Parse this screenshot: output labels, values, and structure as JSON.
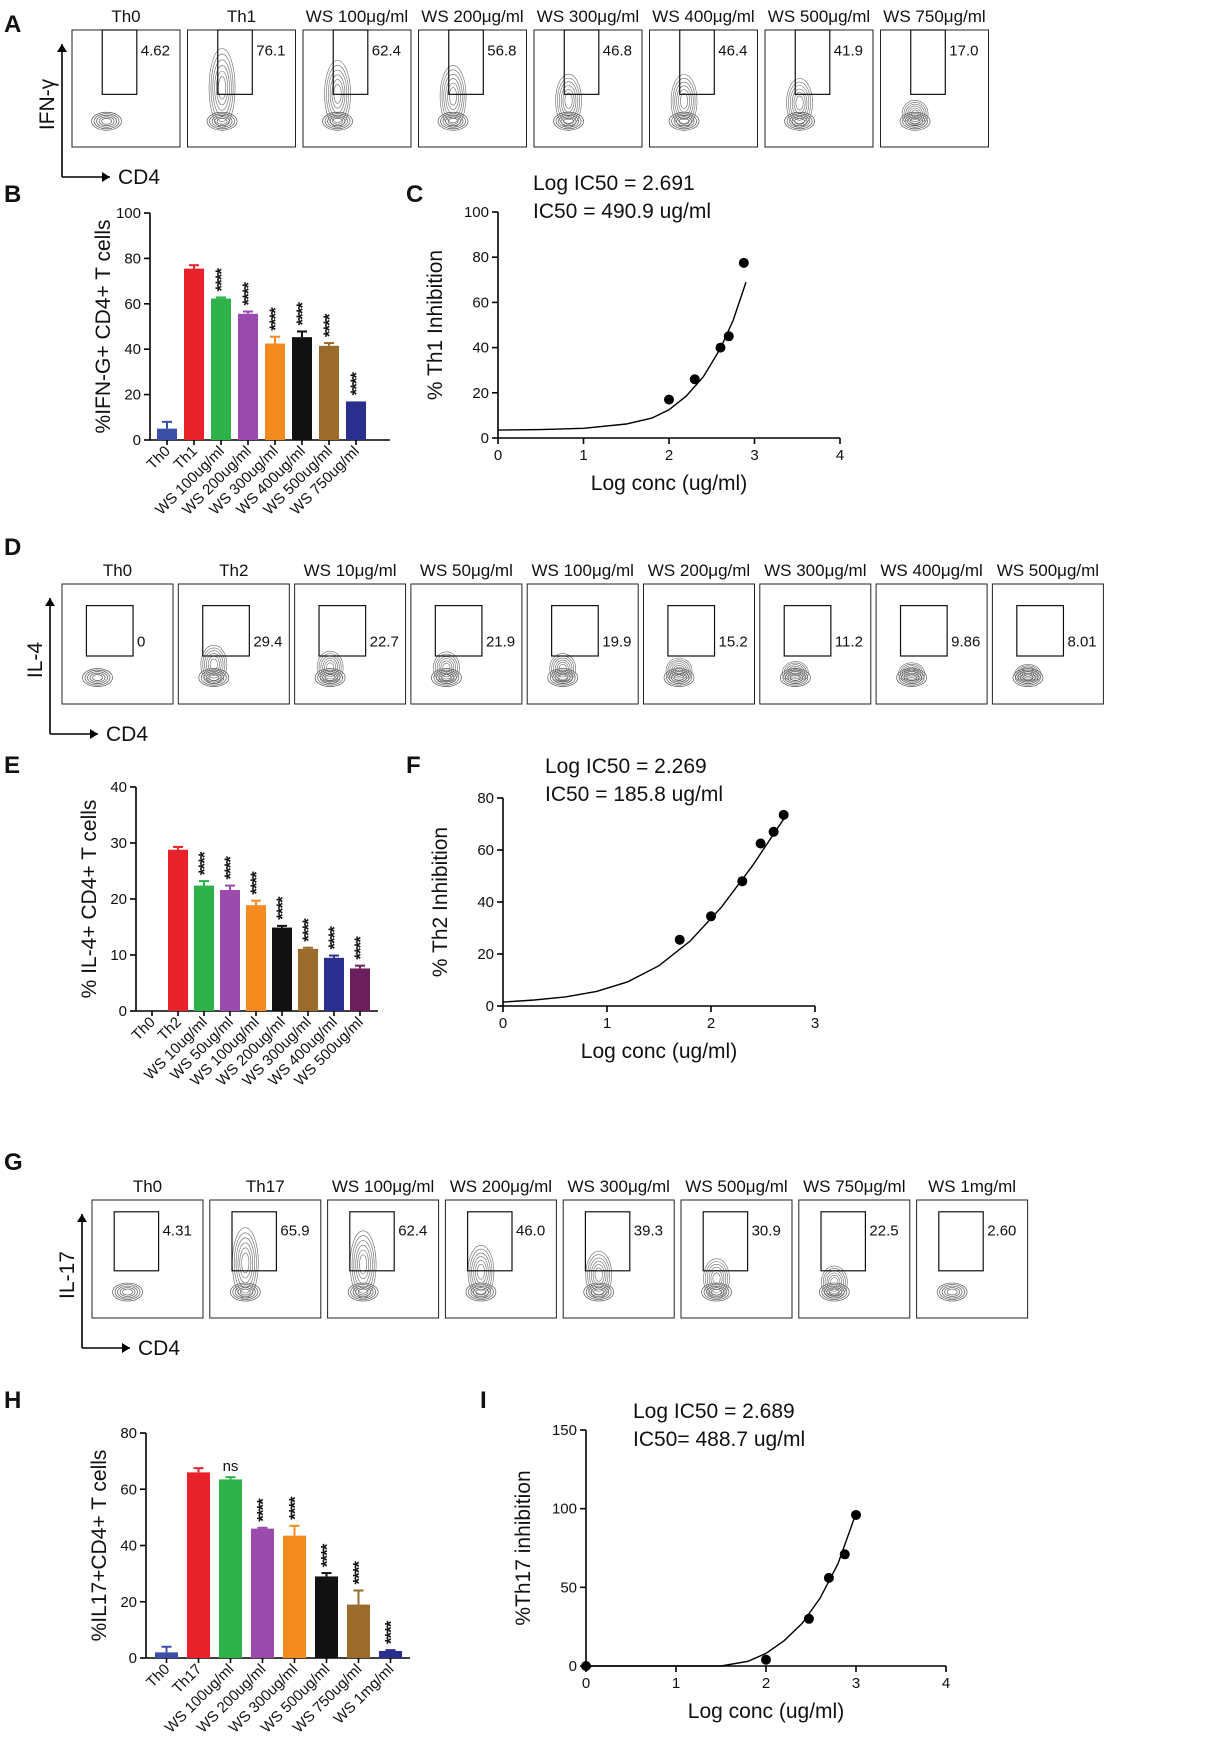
{
  "figure": {
    "panels": {
      "A": "A",
      "B": "B",
      "C": "C",
      "D": "D",
      "E": "E",
      "F": "F",
      "G": "G",
      "H": "H",
      "I": "I"
    }
  },
  "colors": {
    "th0": "#3b4fa8",
    "th": "#e8222b",
    "c1": "#2db24a",
    "c2": "#9b4aad",
    "c3": "#f58a1f",
    "c4": "#111111",
    "c5": "#9a6b2a",
    "c6": "#2a2f8f",
    "c7": "#6b1e5c"
  },
  "chart_data": [
    {
      "id": "A",
      "type": "flow-cytometry",
      "ylabel": "IFN-γ",
      "xlabel": "CD4",
      "titles": [
        "Th0",
        "Th1",
        "WS 100μg/ml",
        "WS 200μg/ml",
        "WS 300μg/ml",
        "WS 400μg/ml",
        "WS 500μg/ml",
        "WS 750μg/ml"
      ],
      "values": [
        "4.62",
        "76.1",
        "62.4",
        "56.8",
        "46.8",
        "46.4",
        "41.9",
        "17.0"
      ]
    },
    {
      "id": "B",
      "type": "bar",
      "ylabel": "%IFN-G+ CD4+ T cells",
      "categories": [
        "Th0",
        "Th1",
        "WS 100ug/ml",
        "WS 200ug/ml",
        "WS 300ug/ml",
        "WS 400ug/ml",
        "WS 500ug/ml",
        "WS 750ug/ml"
      ],
      "values": [
        5,
        75.5,
        62.3,
        55.6,
        42.5,
        45.3,
        41.5,
        17
      ],
      "errors": [
        3,
        1.5,
        0.5,
        1,
        3,
        2.5,
        1.2,
        0
      ],
      "stars": [
        "",
        "",
        "****",
        "****",
        "****",
        "****",
        "****",
        "****"
      ],
      "ylim": [
        0,
        100
      ],
      "yticks": [
        "0",
        "20",
        "40",
        "60",
        "80",
        "100"
      ]
    },
    {
      "id": "C",
      "type": "scatter",
      "title_line1": "Log IC50 = 2.691",
      "title_line2": "IC50 = 490.9 ug/ml",
      "ylabel": "% Th1 Inhibition",
      "xlabel": "Log conc (ug/ml)",
      "x": [
        2.0,
        2.301,
        2.602,
        2.699,
        2.875
      ],
      "y": [
        17,
        26,
        40,
        45,
        77.5
      ],
      "xlim": [
        0,
        4
      ],
      "ylim": [
        0,
        100
      ],
      "xticks": [
        "0",
        "1",
        "2",
        "3",
        "4"
      ],
      "yticks": [
        "0",
        "20",
        "40",
        "60",
        "80",
        "100"
      ],
      "fit_x": [
        0,
        0.5,
        1,
        1.5,
        1.8,
        2.0,
        2.2,
        2.4,
        2.6,
        2.75,
        2.9
      ],
      "fit_y": [
        3.5,
        3.7,
        4.3,
        6.2,
        8.8,
        12.5,
        18.5,
        27,
        39.5,
        52,
        69
      ]
    },
    {
      "id": "D",
      "type": "flow-cytometry",
      "ylabel": "IL-4",
      "xlabel": "CD4",
      "titles": [
        "Th0",
        "Th2",
        "WS 10μg/ml",
        "WS 50μg/ml",
        "WS 100μg/ml",
        "WS 200μg/ml",
        "WS 300μg/ml",
        "WS 400μg/ml",
        "WS 500μg/ml"
      ],
      "values": [
        "0",
        "29.4",
        "22.7",
        "21.9",
        "19.9",
        "15.2",
        "11.2",
        "9.86",
        "8.01"
      ]
    },
    {
      "id": "E",
      "type": "bar",
      "ylabel": "% IL-4+ CD4+ T cells",
      "categories": [
        "Th0",
        "Th2",
        "WS 10ug/ml",
        "WS 50ug/ml",
        "WS 100ug/ml",
        "WS 200ug/ml",
        "WS 300ug/ml",
        "WS 400ug/ml",
        "WS 500ug/ml"
      ],
      "values": [
        0,
        28.8,
        22.4,
        21.6,
        18.9,
        14.9,
        11.1,
        9.5,
        7.6
      ],
      "errors": [
        0,
        0.5,
        0.8,
        0.8,
        0.8,
        0.3,
        0.2,
        0.4,
        0.5
      ],
      "stars": [
        "",
        "",
        "****",
        "****",
        "****",
        "****",
        "****",
        "****",
        "****"
      ],
      "ylim": [
        0,
        40
      ],
      "yticks": [
        "0",
        "10",
        "20",
        "30",
        "40"
      ]
    },
    {
      "id": "F",
      "type": "scatter",
      "title_line1": "Log IC50 =  2.269",
      "title_line2": "IC50 = 185.8 ug/ml",
      "ylabel": "% Th2 Inhibition",
      "xlabel": "Log conc (ug/ml)",
      "x": [
        1.699,
        2.0,
        2.301,
        2.477,
        2.602,
        2.699
      ],
      "y": [
        25.5,
        34.5,
        48,
        62.5,
        67,
        73.5
      ],
      "xlim": [
        0,
        3
      ],
      "ylim": [
        0,
        80
      ],
      "xticks": [
        "0",
        "1",
        "2",
        "3"
      ],
      "yticks": [
        "0",
        "20",
        "40",
        "60",
        "80"
      ],
      "fit_x": [
        0,
        0.3,
        0.6,
        0.9,
        1.2,
        1.5,
        1.8,
        2.1,
        2.4,
        2.7
      ],
      "fit_y": [
        1.5,
        2.3,
        3.5,
        5.6,
        9.3,
        15.5,
        25,
        38,
        54,
        72
      ]
    },
    {
      "id": "G",
      "type": "flow-cytometry",
      "ylabel": "IL-17",
      "xlabel": "CD4",
      "titles": [
        "Th0",
        "Th17",
        "WS 100μg/ml",
        "WS 200μg/ml",
        "WS 300μg/ml",
        "WS 500μg/ml",
        "WS 750μg/ml",
        "WS 1mg/ml"
      ],
      "values": [
        "4.31",
        "65.9",
        "62.4",
        "46.0",
        "39.3",
        "30.9",
        "22.5",
        "2.60"
      ]
    },
    {
      "id": "H",
      "type": "bar",
      "ylabel": "%IL17+CD4+ T cells",
      "categories": [
        "Th0",
        "Th17",
        "WS 100ug/ml",
        "WS 200ug/ml",
        "WS 300ug/ml",
        "WS 500ug/ml",
        "WS 750ug/ml",
        "WS 1mg/ml"
      ],
      "values": [
        2,
        66,
        63.5,
        46,
        43.5,
        29,
        19,
        2.5
      ],
      "errors": [
        2,
        1.5,
        0.8,
        0.3,
        3.5,
        1.2,
        5,
        0.3
      ],
      "stars": [
        "",
        "",
        "ns",
        "****",
        "****",
        "****",
        "****",
        "****"
      ],
      "ylim": [
        0,
        80
      ],
      "yticks": [
        "0",
        "20",
        "40",
        "60",
        "80"
      ]
    },
    {
      "id": "I",
      "type": "scatter",
      "title_line1": "Log IC50 = 2.689",
      "title_line2": "IC50= 488.7 ug/ml",
      "ylabel": "%Th17 inhibition",
      "xlabel": "Log conc (ug/ml)",
      "x": [
        0,
        2.0,
        2.477,
        2.699,
        2.875,
        3.0
      ],
      "y": [
        0,
        4,
        30,
        56,
        71,
        96
      ],
      "xlim": [
        0,
        4
      ],
      "ylim": [
        0,
        150
      ],
      "xticks": [
        "0",
        "1",
        "2",
        "3",
        "4"
      ],
      "yticks": [
        "0",
        "50",
        "100",
        "150"
      ],
      "fit_x": [
        0,
        1.0,
        1.5,
        1.8,
        2.0,
        2.2,
        2.4,
        2.6,
        2.8,
        3.0
      ],
      "fit_y": [
        0,
        0,
        0,
        3,
        8,
        16,
        27,
        43,
        65,
        97
      ]
    }
  ]
}
